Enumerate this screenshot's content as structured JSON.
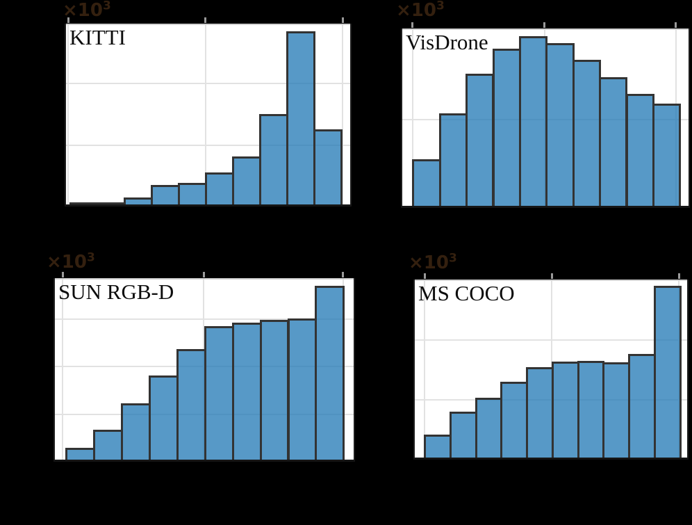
{
  "figure": {
    "background_color": "#000000",
    "panel_background": "#ffffff",
    "bar_fill_color": "rgba(31,119,180,0.75)",
    "bar_fill_on_white": "#5799C7",
    "bar_edge_color": "#333333",
    "grid_color": "#e2e2e2",
    "offset_text_color": "#34200f",
    "label_text_color": "#0d0d0d"
  },
  "chart_data": [
    {
      "type": "bar",
      "label": "KITTI",
      "offset_base": "×10",
      "offset_exp": "3",
      "num_bins": 10,
      "values_x10_3": [
        0.01,
        0.03,
        0.15,
        0.35,
        0.38,
        0.55,
        0.81,
        1.51,
        2.85,
        1.26
      ],
      "ylim": [
        0,
        2.97
      ],
      "y_gridline_values": [
        1,
        2
      ],
      "x_gridlines": 3,
      "tick_labels_visible": false,
      "grid": true
    },
    {
      "type": "bar",
      "label": "VisDrone",
      "offset_base": "×10",
      "offset_exp": "3",
      "num_bins": 10,
      "values_x10_3": [
        0.55,
        1.07,
        1.52,
        1.8,
        1.94,
        1.86,
        1.67,
        1.48,
        1.29,
        1.18
      ],
      "ylim": [
        0,
        2.03
      ],
      "y_gridline_values": [
        1
      ],
      "x_gridlines": 3,
      "tick_labels_visible": false,
      "grid": true
    },
    {
      "type": "bar",
      "label": "SUN RGB-D",
      "offset_base": "×10",
      "offset_exp": "3",
      "num_bins": 10,
      "values_x10_3": [
        0.29,
        0.68,
        1.23,
        1.82,
        2.37,
        2.86,
        2.93,
        2.99,
        3.01,
        3.7
      ],
      "ylim": [
        0,
        3.87
      ],
      "y_gridline_values": [
        1,
        2,
        3
      ],
      "x_gridlines": 3,
      "tick_labels_visible": false,
      "grid": true
    },
    {
      "type": "bar",
      "label": "MS COCO",
      "offset_base": "×10",
      "offset_exp": "3",
      "num_bins": 10,
      "values_x10_3": [
        0.42,
        0.8,
        1.04,
        1.31,
        1.55,
        1.64,
        1.65,
        1.63,
        1.77,
        2.91
      ],
      "ylim": [
        0,
        3.02
      ],
      "y_gridline_values": [
        1,
        2
      ],
      "x_gridlines": 3,
      "tick_labels_visible": false,
      "grid": true
    }
  ]
}
